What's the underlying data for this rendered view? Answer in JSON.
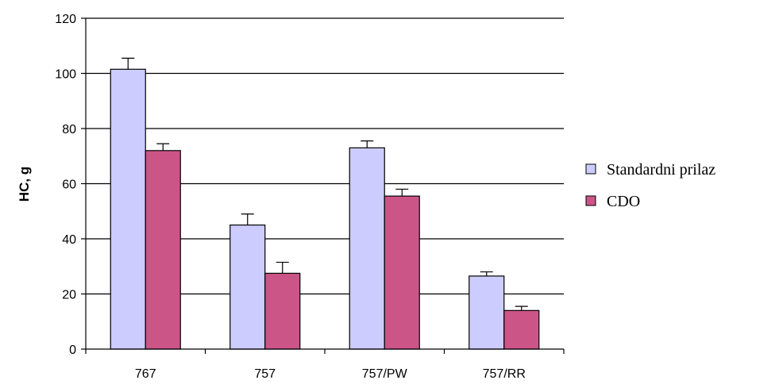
{
  "chart_data": {
    "type": "bar",
    "ylabel": "HC, g",
    "xlabel": "",
    "ylim": [
      0,
      120
    ],
    "yticks": [
      0,
      20,
      40,
      60,
      80,
      100,
      120
    ],
    "grid": true,
    "legend_position": "right",
    "categories": [
      "767",
      "757",
      "757/PW",
      "757/RR"
    ],
    "series": [
      {
        "name": "Standardni prilaz",
        "color": "#ccccff",
        "values": [
          101.5,
          45,
          73,
          26.5
        ],
        "error": [
          4,
          4,
          2.5,
          1.5
        ]
      },
      {
        "name": "CDO",
        "color": "#cc5588",
        "values": [
          72,
          27.5,
          55.5,
          14
        ],
        "error": [
          2.5,
          4,
          2.5,
          1.5
        ]
      }
    ]
  }
}
